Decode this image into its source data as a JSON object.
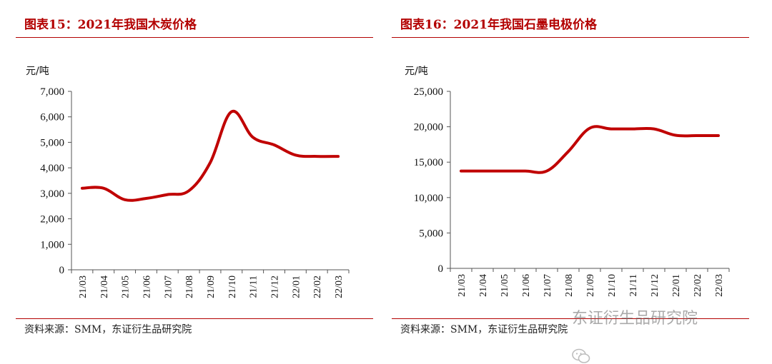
{
  "chart_data": [
    {
      "type": "line",
      "title": "图表15：2021年我国木炭价格",
      "ylabel": "元/吨",
      "xlabel": "",
      "categories": [
        "21/03",
        "21/04",
        "21/05",
        "21/06",
        "21/07",
        "21/08",
        "21/09",
        "21/10",
        "21/11",
        "21/12",
        "22/01",
        "22/02",
        "22/03"
      ],
      "series": [
        {
          "name": "木炭价格",
          "values": [
            3200,
            3200,
            2750,
            2800,
            2950,
            3100,
            4200,
            6200,
            5200,
            4900,
            4500,
            4450,
            4450
          ]
        }
      ],
      "ylim": [
        0,
        7000
      ],
      "yticks": [
        0,
        1000,
        2000,
        3000,
        4000,
        5000,
        6000,
        7000
      ],
      "ytick_labels": [
        "0",
        "1,000",
        "2,000",
        "3,000",
        "4,000",
        "5,000",
        "6,000",
        "7,000"
      ],
      "line_color": "#c00000",
      "grid": false,
      "source": "资料来源：SMM，东证衍生品研究院"
    },
    {
      "type": "line",
      "title": "图表16：2021年我国石墨电极价格",
      "ylabel": "元/吨",
      "xlabel": "",
      "categories": [
        "21/03",
        "21/04",
        "21/05",
        "21/06",
        "21/07",
        "21/08",
        "21/09",
        "21/10",
        "21/11",
        "21/12",
        "22/01",
        "22/02",
        "22/03"
      ],
      "series": [
        {
          "name": "石墨电极价格",
          "values": [
            13750,
            13750,
            13750,
            13750,
            13750,
            16500,
            19800,
            19700,
            19700,
            19700,
            18800,
            18750,
            18750
          ]
        }
      ],
      "ylim": [
        0,
        25000
      ],
      "yticks": [
        0,
        5000,
        10000,
        15000,
        20000,
        25000
      ],
      "ytick_labels": [
        "0",
        "5,000",
        "10,000",
        "15,000",
        "20,000",
        "25,000"
      ],
      "line_color": "#c00000",
      "grid": false,
      "source": "资料来源：SMM，东证衍生品研究院"
    }
  ],
  "watermark": {
    "text": "东证衍生品研究院",
    "icon": "wechat-icon"
  }
}
